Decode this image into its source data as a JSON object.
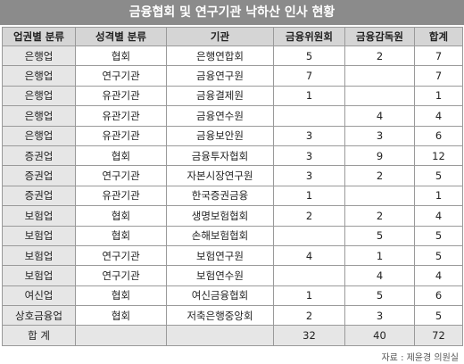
{
  "title": "금융협회 및 연구기관 낙하산 인사 현황",
  "columns": [
    "업권별 분류",
    "성격별 분류",
    "기관",
    "금융위원회",
    "금융감독원",
    "합계"
  ],
  "rows": [
    [
      "은행업",
      "협회",
      "은행연합회",
      "5",
      "2",
      "7"
    ],
    [
      "은행업",
      "연구기관",
      "금융연구원",
      "7",
      "",
      "7"
    ],
    [
      "은행업",
      "유관기관",
      "금융결제원",
      "1",
      "",
      "1"
    ],
    [
      "은행업",
      "유관기관",
      "금융연수원",
      "",
      "4",
      "4"
    ],
    [
      "은행업",
      "유관기관",
      "금융보안원",
      "3",
      "3",
      "6"
    ],
    [
      "증권업",
      "협회",
      "금융투자협회",
      "3",
      "9",
      "12"
    ],
    [
      "증권업",
      "연구기관",
      "자본시장연구원",
      "3",
      "2",
      "5"
    ],
    [
      "증권업",
      "유관기관",
      "한국증권금융",
      "1",
      "",
      "1"
    ],
    [
      "보험업",
      "협회",
      "생명보험협회",
      "2",
      "2",
      "4"
    ],
    [
      "보험업",
      "협회",
      "손해보험협회",
      "",
      "5",
      "5"
    ],
    [
      "보험업",
      "연구기관",
      "보험연구원",
      "4",
      "1",
      "5"
    ],
    [
      "보험업",
      "연구기관",
      "보험연수원",
      "",
      "4",
      "4"
    ],
    [
      "여신업",
      "협회",
      "여신금융협회",
      "1",
      "5",
      "6"
    ],
    [
      "상호금융업",
      "협회",
      "저축은행중앙회",
      "2",
      "3",
      "5"
    ]
  ],
  "total": {
    "label": "합  계",
    "fsc": "32",
    "fss": "40",
    "sum": "72"
  },
  "source": "자료 : 제윤경 의원실"
}
